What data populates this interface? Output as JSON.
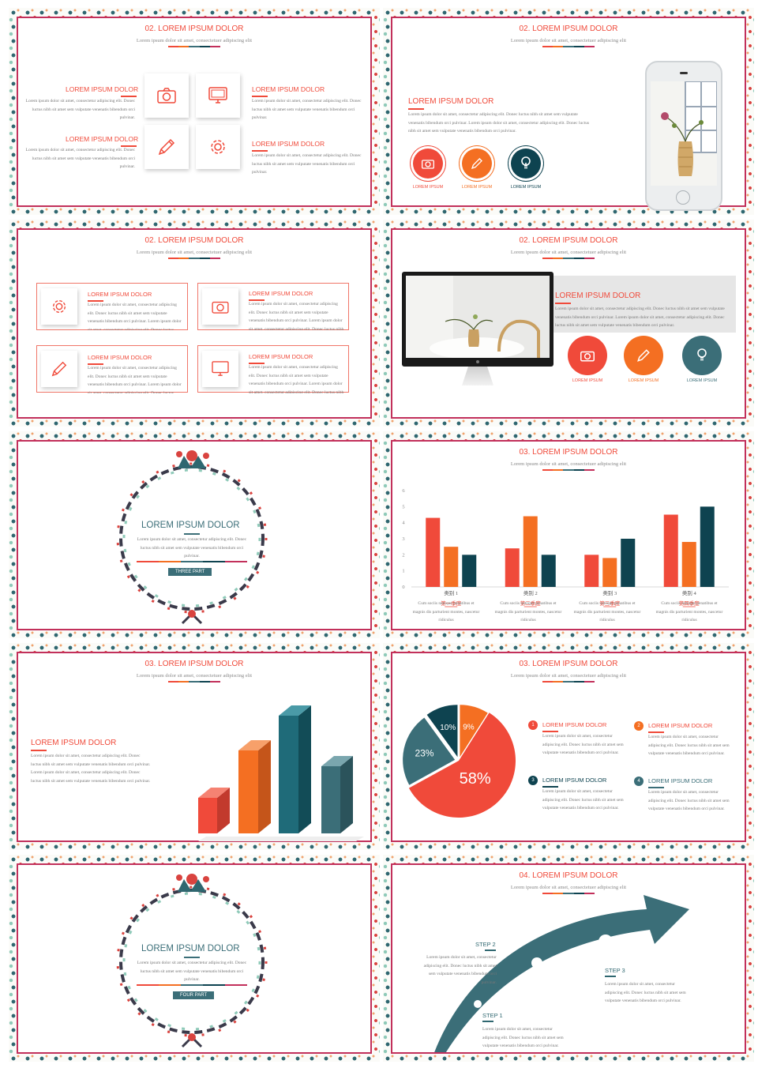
{
  "colors": {
    "coral": "#f04a3a",
    "orange": "#f46f22",
    "navy": "#0e4350",
    "teal": "#3b6e78",
    "frame": "#c2305b"
  },
  "common": {
    "sub": "Lorem ipsum dolor sit amet, consectetuer adipiscing elit",
    "head": "LOREM IPSUM DOLOR",
    "ipsum": "LOREM IPSUM"
  },
  "text": {
    "p1": "Lorem ipsum dolor sit amet, consectetur adipiscing elit. Donec luctus nibh sit amet sem vulputate venenatis bibendum orci pulvinar.",
    "p2": "Lorem ipsum dolor sit amet, consectetur adipiscing elit. Donec luctus nibh sit amet sem vulputate venenatis bibendum orci pulvinar. Lorem ipsum dolor sit amet, consectetur adipiscing elit. Donec luctus nibh sit amet sem vulputate venenatis bibendum orci pulvinar.",
    "p3": "Lorem ipsum dolor sit amet, consectetur adipiscing elit. Donec luctus nibh sit amet sem vulputate venenatis bibendum orci pulvinar. Lorem ipsum dolor sit amet, consectetur adipiscing elit. Donec luctus nibh sit amet sem vulputate venenatis bibendum orci pulvinar.",
    "p4": "Lorem ipsum dolor sit amet, consectetur adipiscing elit. Donec luctus nibh sit amet sem vulputate venenatis bibendum orci pulvinar.",
    "p5": "Lorem ipsum dolor sit amet, consectetur adipiscing elit. Donec luctus nibh sit amet sem vulputate venenatis bibendum orci pulvinar. Lorem ipsum dolor sit amet, consectetur adipiscing elit. Donec luctus nibh sit amet sem vulputate venenatis bibendum orci pulvinar.",
    "p6": "Lorem ipsum dolor sit amet, consectetur adipiscing elit. Donec luctus nibh sit amet sem vulputate venenatis bibendum orci pulvinar.",
    "p7": "Cum sociis natoque penatibus et magnis dis parturient montes, nascetur ridiculus",
    "p8": "Lorem ipsum dolor sit amet, consectetur adipiscing elit. Donec luctus nibh sit amet sem vulputate venenatis bibendum orci pulvinar."
  },
  "slides": {
    "s1": {
      "title": "02. LOREM IPSUM DOLOR"
    },
    "s2": {
      "title": "02. LOREM IPSUM DOLOR"
    },
    "s3": {
      "title": "02. LOREM IPSUM DOLOR"
    },
    "s4": {
      "title": "02. LOREM IPSUM DOLOR"
    },
    "s5": {
      "label": "THREE PART"
    },
    "s6": {
      "title": "03. LOREM IPSUM DOLOR"
    },
    "s7": {
      "title": "03. LOREM IPSUM DOLOR"
    },
    "s8": {
      "title": "03. LOREM IPSUM DOLOR",
      "n1": "1",
      "n2": "2",
      "n3": "3",
      "n4": "4"
    },
    "s9": {
      "label": "FOUR PART"
    },
    "s10": {
      "title": "04. LOREM IPSUM DOLOR",
      "step1": "STEP 1",
      "step2": "STEP 2",
      "step3": "STEP 3"
    }
  },
  "chart_data": [
    {
      "type": "bar",
      "title": "",
      "categories": [
        "类别 1",
        "类别 2",
        "类别 3",
        "类别 4"
      ],
      "series": [
        {
          "values": [
            4.3,
            2.4,
            2.0,
            4.5
          ]
        },
        {
          "values": [
            2.5,
            4.4,
            1.8,
            2.8
          ]
        },
        {
          "values": [
            2.0,
            2.0,
            3.0,
            5.0
          ]
        }
      ],
      "colors": [
        "#f04a3a",
        "#f46f22",
        "#0e4350"
      ],
      "yticks": [
        "0",
        "1",
        "2",
        "3",
        "4",
        "5",
        "6"
      ],
      "ylim": [
        0,
        6
      ],
      "seasons": [
        "第一季度",
        "第二季度",
        "第三季度",
        "第四季度"
      ],
      "grid": false
    },
    {
      "type": "pie",
      "values": [
        58,
        23,
        10,
        9
      ],
      "labels": [
        "58%",
        "23%",
        "10%",
        "9%"
      ],
      "colors": [
        "#f04a3a",
        "#3b6e78",
        "#0e4350",
        "#f46f22"
      ]
    }
  ]
}
